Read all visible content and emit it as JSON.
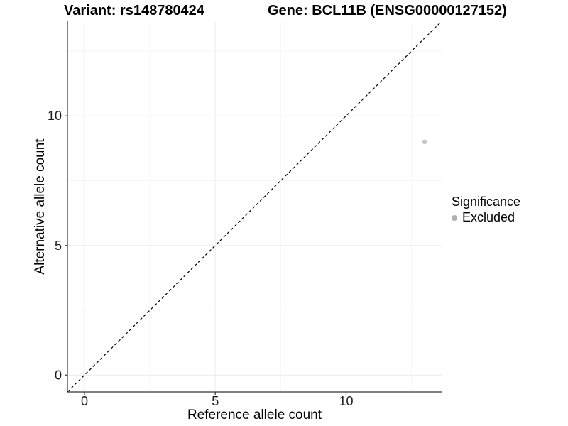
{
  "title": {
    "variant": "Variant: rs148780424",
    "gene": "Gene: BCL11B (ENSG00000127152)"
  },
  "chart_data": {
    "type": "scatter",
    "title": "Variant: rs148780424   Gene: BCL11B (ENSG00000127152)",
    "xlabel": "Reference allele count",
    "ylabel": "Alternative allele count",
    "xlim": [
      -0.65,
      13.65
    ],
    "ylim": [
      -0.65,
      13.65
    ],
    "x_ticks": [
      0,
      5,
      10
    ],
    "y_ticks": [
      0,
      5,
      10
    ],
    "x_minor_ticks": [
      2.5,
      7.5,
      12.5
    ],
    "y_minor_ticks": [
      2.5,
      7.5,
      12.5
    ],
    "grid": true,
    "series": [
      {
        "name": "Excluded",
        "points": [
          {
            "x": 13,
            "y": 9
          }
        ]
      }
    ],
    "identity_line": {
      "style": "dashed",
      "from": [
        -0.65,
        -0.65
      ],
      "to": [
        13.65,
        13.65
      ]
    },
    "legend": {
      "title": "Significance",
      "position": "right",
      "items": [
        {
          "label": "Excluded",
          "color": "#b0b0b0"
        }
      ]
    },
    "colors": {
      "point": "#c5c5c5",
      "legend_dot": "#b0b0b0",
      "grid_major": "#ececec",
      "grid_minor": "#f6f6f6",
      "axis": "#333333",
      "identity_line": "#000000",
      "text": "#000000"
    }
  }
}
